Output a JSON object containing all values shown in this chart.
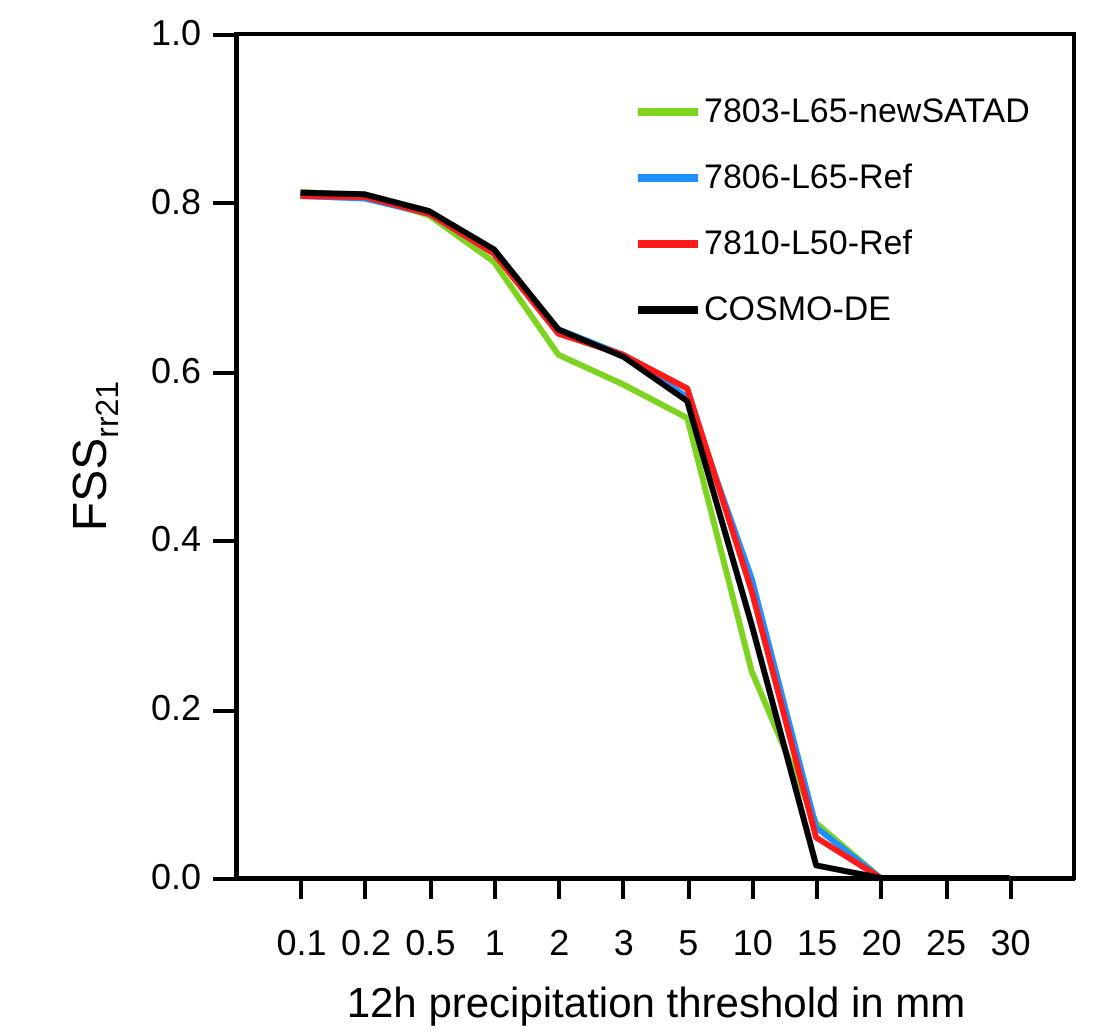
{
  "chart_data": {
    "type": "line",
    "xlabel": "12h precipitation threshold in mm",
    "ylabel": "FSS$_{rr21}$",
    "categories": [
      "0.1",
      "0.2",
      "0.5",
      "1",
      "2",
      "3",
      "5",
      "10",
      "15",
      "20",
      "25",
      "30"
    ],
    "ylim": [
      0,
      1
    ],
    "yticks": [
      {
        "value": 0,
        "label": "0.0"
      },
      {
        "value": 0.2,
        "label": "0.2"
      },
      {
        "value": 0.4,
        "label": "0.4"
      },
      {
        "value": 0.6,
        "label": "0.6"
      },
      {
        "value": 0.8,
        "label": "0.8"
      },
      {
        "value": 1,
        "label": "1.0"
      }
    ],
    "grid": false,
    "legend": "top right",
    "line_style": "solid",
    "series": [
      {
        "name": "7803-L65-newSATAD",
        "color": "#7ed321",
        "values": [
          0.813,
          0.808,
          0.785,
          0.73,
          0.62,
          0.585,
          0.545,
          0.245,
          0.065,
          0,
          0,
          0
        ]
      },
      {
        "name": "7806-L65-Ref",
        "color": "#1e90ff",
        "values": [
          0.808,
          0.805,
          0.787,
          0.74,
          0.65,
          0.62,
          0.57,
          0.355,
          0.06,
          0,
          0,
          0
        ]
      },
      {
        "name": "7810-L50-Ref",
        "color": "#ff1a1a",
        "values": [
          0.808,
          0.807,
          0.787,
          0.74,
          0.645,
          0.62,
          0.58,
          0.34,
          0.048,
          0,
          0,
          0
        ]
      },
      {
        "name": "COSMO-DE",
        "color": "#000000",
        "values": [
          0.812,
          0.81,
          0.79,
          0.745,
          0.65,
          0.618,
          0.565,
          0.3,
          0.015,
          0,
          0,
          0
        ]
      }
    ]
  }
}
